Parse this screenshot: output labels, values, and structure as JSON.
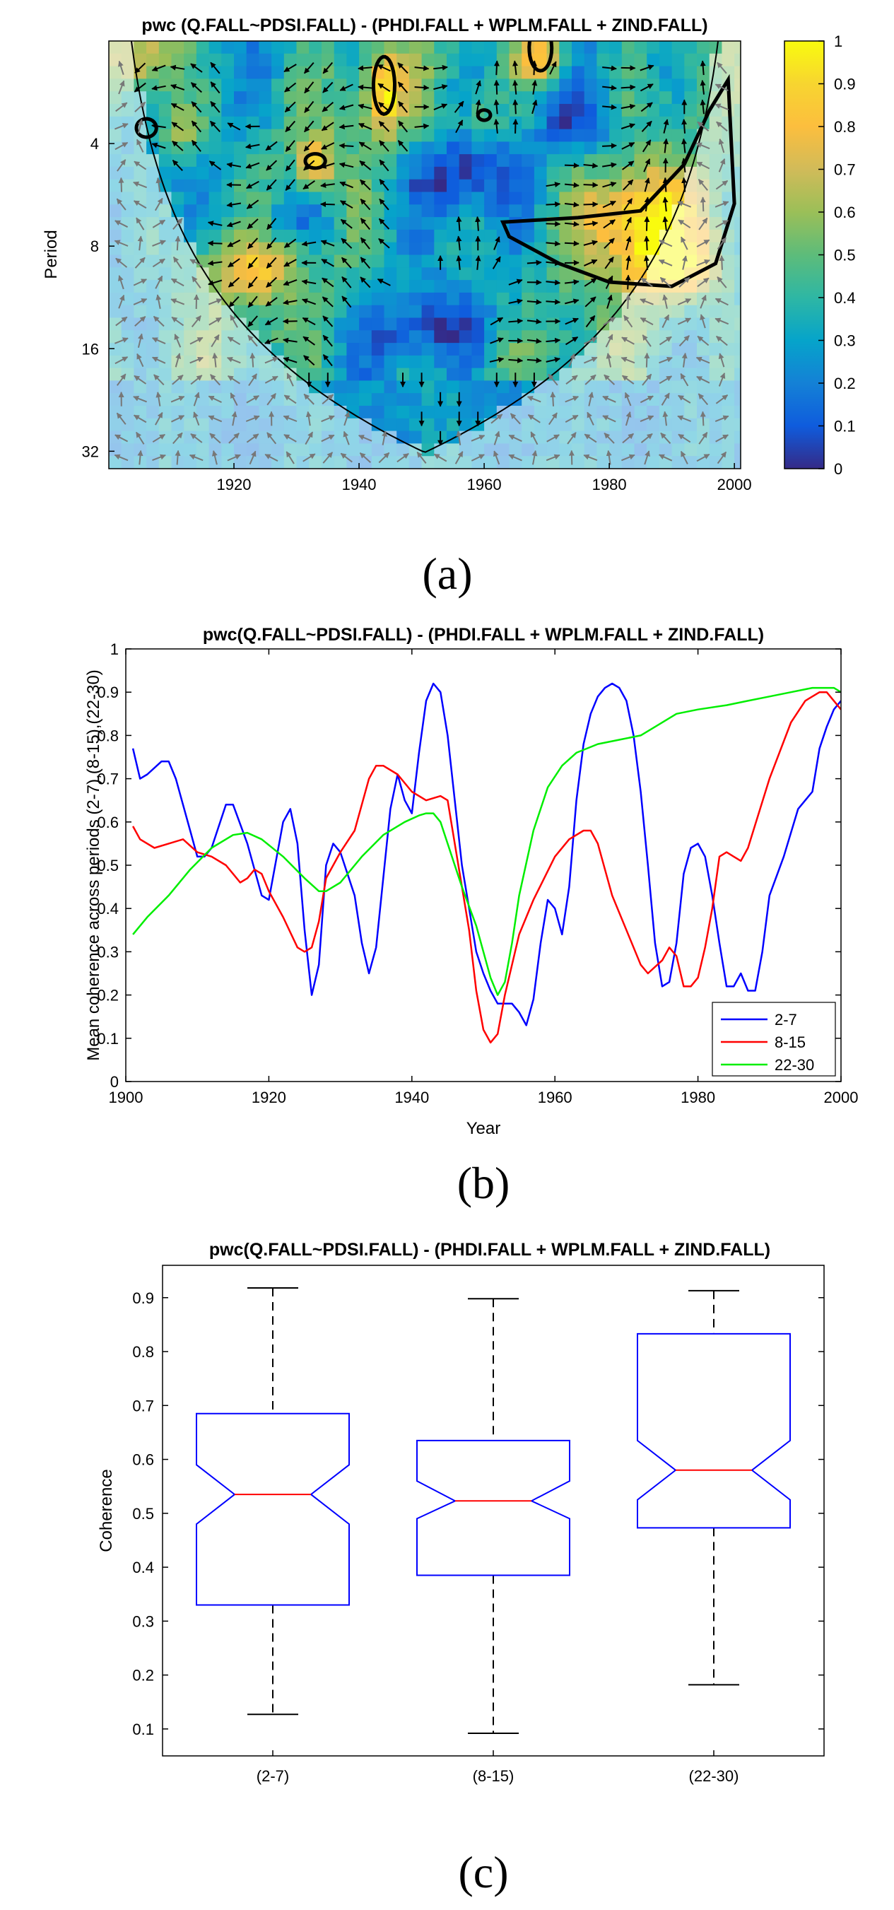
{
  "chart_data": [
    {
      "type": "heatmap",
      "panel": "(a)",
      "title": "pwc (Q.FALL~PDSI.FALL) - (PHDI.FALL + WPLM.FALL + ZIND.FALL)",
      "xlabel": "",
      "ylabel": "Period",
      "x_ticks": [
        "1920",
        "1940",
        "1960",
        "1980",
        "2000"
      ],
      "x_tick_values": [
        1920,
        1940,
        1960,
        1980,
        2000
      ],
      "xlim": [
        1900,
        2001
      ],
      "y_ticks": [
        "4",
        "8",
        "16",
        "32"
      ],
      "y_tick_values": [
        4,
        8,
        16,
        32
      ],
      "ylim": [
        2,
        36
      ],
      "y_scale": "log2-reversed",
      "colorbar_ticks": [
        "0",
        "0.1",
        "0.2",
        "0.3",
        "0.4",
        "0.5",
        "0.6",
        "0.7",
        "0.8",
        "0.9",
        "1"
      ],
      "colorbar_range": [
        0,
        1
      ],
      "colormap": "parula"
    },
    {
      "type": "line",
      "panel": "(b)",
      "title": "pwc(Q.FALL~PDSI.FALL) - (PHDI.FALL + WPLM.FALL + ZIND.FALL)",
      "xlabel": "Year",
      "ylabel": "Mean coherence across periods (2-7),(8-15),(22-30)",
      "xlim": [
        1900,
        2000
      ],
      "ylim": [
        0,
        1
      ],
      "x_ticks": [
        "1900",
        "1920",
        "1940",
        "1960",
        "1980",
        "2000"
      ],
      "y_ticks": [
        "0",
        "0.1",
        "0.2",
        "0.3",
        "0.4",
        "0.5",
        "0.6",
        "0.7",
        "0.8",
        "0.9",
        "1"
      ],
      "legend_position": "bottom-right",
      "series": [
        {
          "name": "2-7",
          "color": "#0000ff",
          "points": [
            [
              1901,
              0.77
            ],
            [
              1902,
              0.7
            ],
            [
              1903,
              0.71
            ],
            [
              1905,
              0.74
            ],
            [
              1906,
              0.74
            ],
            [
              1907,
              0.7
            ],
            [
              1909,
              0.58
            ],
            [
              1910,
              0.52
            ],
            [
              1911,
              0.52
            ],
            [
              1912,
              0.54
            ],
            [
              1914,
              0.64
            ],
            [
              1915,
              0.64
            ],
            [
              1917,
              0.55
            ],
            [
              1919,
              0.43
            ],
            [
              1920,
              0.42
            ],
            [
              1922,
              0.6
            ],
            [
              1923,
              0.63
            ],
            [
              1924,
              0.55
            ],
            [
              1925,
              0.35
            ],
            [
              1926,
              0.2
            ],
            [
              1927,
              0.27
            ],
            [
              1928,
              0.5
            ],
            [
              1929,
              0.55
            ],
            [
              1930,
              0.53
            ],
            [
              1932,
              0.43
            ],
            [
              1933,
              0.32
            ],
            [
              1934,
              0.25
            ],
            [
              1935,
              0.31
            ],
            [
              1937,
              0.63
            ],
            [
              1938,
              0.71
            ],
            [
              1939,
              0.65
            ],
            [
              1940,
              0.62
            ],
            [
              1941,
              0.76
            ],
            [
              1942,
              0.88
            ],
            [
              1943,
              0.92
            ],
            [
              1944,
              0.9
            ],
            [
              1945,
              0.8
            ],
            [
              1946,
              0.65
            ],
            [
              1947,
              0.5
            ],
            [
              1948,
              0.4
            ],
            [
              1949,
              0.3
            ],
            [
              1950,
              0.25
            ],
            [
              1951,
              0.21
            ],
            [
              1952,
              0.18
            ],
            [
              1953,
              0.18
            ],
            [
              1954,
              0.18
            ],
            [
              1955,
              0.16
            ],
            [
              1956,
              0.13
            ],
            [
              1957,
              0.19
            ],
            [
              1958,
              0.32
            ],
            [
              1959,
              0.42
            ],
            [
              1960,
              0.4
            ],
            [
              1961,
              0.34
            ],
            [
              1962,
              0.45
            ],
            [
              1963,
              0.65
            ],
            [
              1964,
              0.78
            ],
            [
              1965,
              0.85
            ],
            [
              1966,
              0.89
            ],
            [
              1967,
              0.91
            ],
            [
              1968,
              0.92
            ],
            [
              1969,
              0.91
            ],
            [
              1970,
              0.88
            ],
            [
              1971,
              0.8
            ],
            [
              1972,
              0.67
            ],
            [
              1973,
              0.5
            ],
            [
              1974,
              0.32
            ],
            [
              1975,
              0.22
            ],
            [
              1976,
              0.23
            ],
            [
              1977,
              0.32
            ],
            [
              1978,
              0.48
            ],
            [
              1979,
              0.54
            ],
            [
              1980,
              0.55
            ],
            [
              1981,
              0.52
            ],
            [
              1982,
              0.43
            ],
            [
              1983,
              0.32
            ],
            [
              1984,
              0.22
            ],
            [
              1985,
              0.22
            ],
            [
              1986,
              0.25
            ],
            [
              1987,
              0.21
            ],
            [
              1988,
              0.21
            ],
            [
              1989,
              0.3
            ],
            [
              1990,
              0.43
            ],
            [
              1992,
              0.52
            ],
            [
              1994,
              0.63
            ],
            [
              1995,
              0.65
            ],
            [
              1996,
              0.67
            ],
            [
              1997,
              0.77
            ],
            [
              1998,
              0.82
            ],
            [
              1999,
              0.86
            ],
            [
              2000,
              0.88
            ]
          ]
        },
        {
          "name": "8-15",
          "color": "#ff0000",
          "points": [
            [
              1901,
              0.59
            ],
            [
              1902,
              0.56
            ],
            [
              1904,
              0.54
            ],
            [
              1906,
              0.55
            ],
            [
              1908,
              0.56
            ],
            [
              1910,
              0.53
            ],
            [
              1912,
              0.52
            ],
            [
              1914,
              0.5
            ],
            [
              1915,
              0.48
            ],
            [
              1916,
              0.46
            ],
            [
              1917,
              0.47
            ],
            [
              1918,
              0.49
            ],
            [
              1919,
              0.48
            ],
            [
              1920,
              0.44
            ],
            [
              1922,
              0.38
            ],
            [
              1924,
              0.31
            ],
            [
              1925,
              0.3
            ],
            [
              1926,
              0.31
            ],
            [
              1927,
              0.37
            ],
            [
              1928,
              0.47
            ],
            [
              1930,
              0.53
            ],
            [
              1932,
              0.58
            ],
            [
              1934,
              0.7
            ],
            [
              1935,
              0.73
            ],
            [
              1936,
              0.73
            ],
            [
              1938,
              0.71
            ],
            [
              1940,
              0.67
            ],
            [
              1942,
              0.65
            ],
            [
              1944,
              0.66
            ],
            [
              1945,
              0.65
            ],
            [
              1946,
              0.55
            ],
            [
              1948,
              0.35
            ],
            [
              1949,
              0.21
            ],
            [
              1950,
              0.12
            ],
            [
              1951,
              0.09
            ],
            [
              1952,
              0.11
            ],
            [
              1953,
              0.2
            ],
            [
              1955,
              0.34
            ],
            [
              1957,
              0.42
            ],
            [
              1960,
              0.52
            ],
            [
              1962,
              0.56
            ],
            [
              1964,
              0.58
            ],
            [
              1965,
              0.58
            ],
            [
              1966,
              0.55
            ],
            [
              1968,
              0.43
            ],
            [
              1970,
              0.35
            ],
            [
              1972,
              0.27
            ],
            [
              1973,
              0.25
            ],
            [
              1975,
              0.28
            ],
            [
              1976,
              0.31
            ],
            [
              1977,
              0.29
            ],
            [
              1978,
              0.22
            ],
            [
              1979,
              0.22
            ],
            [
              1980,
              0.24
            ],
            [
              1981,
              0.31
            ],
            [
              1982,
              0.4
            ],
            [
              1983,
              0.52
            ],
            [
              1984,
              0.53
            ],
            [
              1985,
              0.52
            ],
            [
              1986,
              0.51
            ],
            [
              1987,
              0.54
            ],
            [
              1990,
              0.7
            ],
            [
              1993,
              0.83
            ],
            [
              1995,
              0.88
            ],
            [
              1997,
              0.9
            ],
            [
              1998,
              0.9
            ],
            [
              1999,
              0.88
            ],
            [
              2000,
              0.86
            ]
          ]
        },
        {
          "name": "22-30",
          "color": "#00ee00",
          "points": [
            [
              1901,
              0.34
            ],
            [
              1903,
              0.38
            ],
            [
              1906,
              0.43
            ],
            [
              1909,
              0.49
            ],
            [
              1912,
              0.54
            ],
            [
              1915,
              0.57
            ],
            [
              1917,
              0.575
            ],
            [
              1919,
              0.56
            ],
            [
              1922,
              0.52
            ],
            [
              1925,
              0.47
            ],
            [
              1927,
              0.44
            ],
            [
              1928,
              0.44
            ],
            [
              1930,
              0.46
            ],
            [
              1933,
              0.52
            ],
            [
              1936,
              0.57
            ],
            [
              1939,
              0.6
            ],
            [
              1941,
              0.615
            ],
            [
              1942,
              0.62
            ],
            [
              1943,
              0.62
            ],
            [
              1944,
              0.6
            ],
            [
              1945,
              0.55
            ],
            [
              1947,
              0.45
            ],
            [
              1949,
              0.36
            ],
            [
              1950,
              0.3
            ],
            [
              1951,
              0.24
            ],
            [
              1952,
              0.2
            ],
            [
              1953,
              0.23
            ],
            [
              1954,
              0.32
            ],
            [
              1955,
              0.43
            ],
            [
              1957,
              0.58
            ],
            [
              1959,
              0.68
            ],
            [
              1961,
              0.73
            ],
            [
              1963,
              0.76
            ],
            [
              1966,
              0.78
            ],
            [
              1969,
              0.79
            ],
            [
              1972,
              0.8
            ],
            [
              1974,
              0.82
            ],
            [
              1977,
              0.85
            ],
            [
              1980,
              0.86
            ],
            [
              1984,
              0.87
            ],
            [
              1987,
              0.88
            ],
            [
              1990,
              0.89
            ],
            [
              1993,
              0.9
            ],
            [
              1996,
              0.91
            ],
            [
              1999,
              0.91
            ],
            [
              2000,
              0.9
            ]
          ]
        }
      ]
    },
    {
      "type": "box",
      "panel": "(c)",
      "title": "pwc(Q.FALL~PDSI.FALL) - (PHDI.FALL + WPLM.FALL + ZIND.FALL)",
      "xlabel": "",
      "ylabel": "Coherence",
      "ylim": [
        0.05,
        0.96
      ],
      "y_ticks": [
        "0.1",
        "0.2",
        "0.3",
        "0.4",
        "0.5",
        "0.6",
        "0.7",
        "0.8",
        "0.9"
      ],
      "categories": [
        "(2-7)",
        "(8-15)",
        "(22-30)"
      ],
      "boxes": [
        {
          "category": "(2-7)",
          "min": 0.127,
          "q1": 0.33,
          "notch_low": 0.48,
          "median": 0.535,
          "notch_high": 0.59,
          "q3": 0.685,
          "max": 0.918
        },
        {
          "category": "(8-15)",
          "min": 0.092,
          "q1": 0.385,
          "notch_low": 0.49,
          "median": 0.523,
          "notch_high": 0.56,
          "q3": 0.635,
          "max": 0.898
        },
        {
          "category": "(22-30)",
          "min": 0.182,
          "q1": 0.473,
          "notch_low": 0.525,
          "median": 0.58,
          "notch_high": 0.635,
          "q3": 0.833,
          "max": 0.913
        }
      ]
    }
  ],
  "colors": {
    "box_line": "#0000ff",
    "median_line": "#ff0000",
    "whisker": "#000000"
  }
}
